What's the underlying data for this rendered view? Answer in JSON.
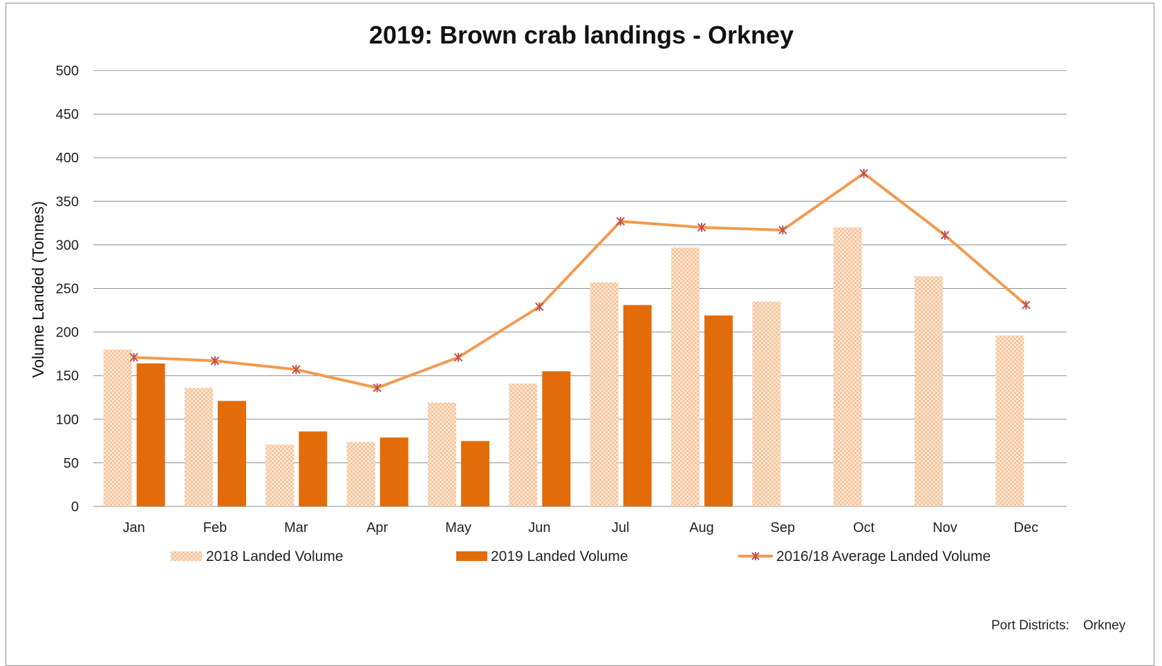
{
  "chart_data": {
    "type": "bar",
    "title": "2019: Brown crab landings - Orkney",
    "xlabel": "",
    "ylabel": "Volume Landed (Tonnes)",
    "ylim": [
      0,
      500
    ],
    "yticks": [
      0,
      50,
      100,
      150,
      200,
      250,
      300,
      350,
      400,
      450,
      500
    ],
    "grid": true,
    "legend_position": "bottom",
    "categories": [
      "Jan",
      "Feb",
      "Mar",
      "Apr",
      "May",
      "Jun",
      "Jul",
      "Aug",
      "Sep",
      "Oct",
      "Nov",
      "Dec"
    ],
    "series": [
      {
        "name": "2018  Landed Volume",
        "kind": "bar",
        "color": "#f8cba4",
        "pattern": "checker",
        "values": [
          180,
          136,
          71,
          74,
          119,
          141,
          257,
          297,
          235,
          320,
          264,
          196
        ]
      },
      {
        "name": "2019 Landed Volume",
        "kind": "bar",
        "color": "#e36c0a",
        "values": [
          164,
          121,
          86,
          79,
          75,
          155,
          231,
          219,
          null,
          null,
          null,
          null
        ]
      },
      {
        "name": "2016/18 Average Landed Volume",
        "kind": "line",
        "color": "#f39a4d",
        "marker_color": "#c0504d",
        "values": [
          171,
          167,
          157,
          136,
          171,
          229,
          327,
          320,
          317,
          382,
          311,
          231
        ]
      }
    ]
  },
  "footer": {
    "label": "Port Districts:",
    "value": "Orkney"
  }
}
